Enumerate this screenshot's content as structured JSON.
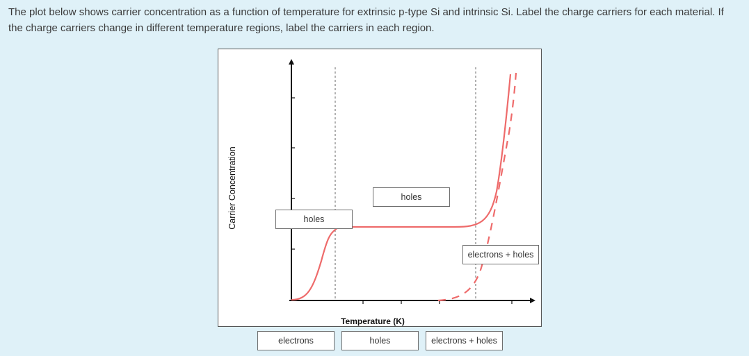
{
  "question": {
    "text": "The plot below shows carrier concentration as a function of temperature for extrinsic p-type Si and intrinsic Si. Label the charge carriers for each material. If the charge carriers change in different temperature regions, label the carriers in each region."
  },
  "plot": {
    "ylabel": "Carrier Concentration",
    "xlabel": "Temperature (K)",
    "curve_color": "#ee6b6b",
    "axis_color": "#111111"
  },
  "drop_zones": [
    {
      "id": "low-temp-region",
      "value": "holes"
    },
    {
      "id": "extrinsic-plateau",
      "value": "holes"
    },
    {
      "id": "intrinsic-high-temp",
      "value": "electrons + holes"
    }
  ],
  "answer_bank": [
    {
      "label": "electrons"
    },
    {
      "label": "holes"
    },
    {
      "label": "electrons + holes"
    }
  ]
}
